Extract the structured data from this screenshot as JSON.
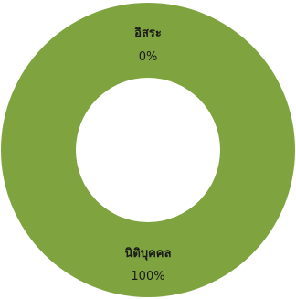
{
  "chart_data": {
    "type": "pie",
    "style": "donut",
    "categories": [
      "อิสระ",
      "นิติบุคคล"
    ],
    "values": [
      0,
      100
    ],
    "value_labels": [
      "0%",
      "100%"
    ],
    "colors": [
      "#6f9a38",
      "#7ea33f"
    ],
    "title": "",
    "legend": "none"
  }
}
